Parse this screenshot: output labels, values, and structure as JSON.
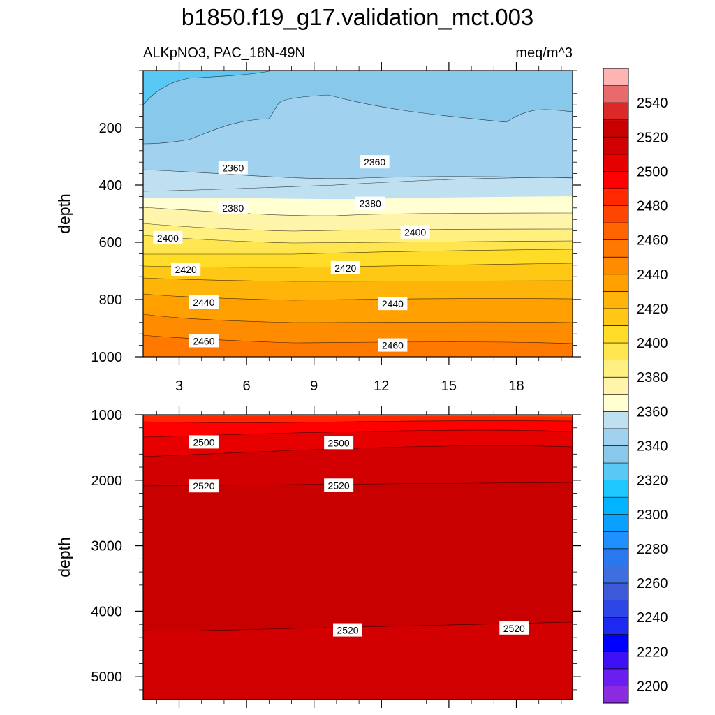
{
  "title": "b1850.f19_g17.validation_mct.003",
  "subtitle_left": "ALKpNO3, PAC_18N-49N",
  "subtitle_right": "meq/m^3",
  "chart_data": [
    {
      "type": "contour",
      "panel": "upper",
      "ylabel": "depth",
      "xlim": [
        1.4,
        20.5
      ],
      "ylim": [
        1000,
        0
      ],
      "x_ticks": [
        3,
        6,
        9,
        12,
        15,
        18
      ],
      "y_ticks": [
        200,
        400,
        600,
        800,
        1000
      ],
      "contour_labels": [
        {
          "value": 2360,
          "x": 5.4,
          "depth": 340
        },
        {
          "value": 2360,
          "x": 11.7,
          "depth": 320
        },
        {
          "value": 2380,
          "x": 5.4,
          "depth": 480
        },
        {
          "value": 2380,
          "x": 11.5,
          "depth": 465
        },
        {
          "value": 2400,
          "x": 2.5,
          "depth": 585
        },
        {
          "value": 2400,
          "x": 13.5,
          "depth": 565
        },
        {
          "value": 2420,
          "x": 3.3,
          "depth": 695
        },
        {
          "value": 2420,
          "x": 10.4,
          "depth": 690
        },
        {
          "value": 2440,
          "x": 4.1,
          "depth": 810
        },
        {
          "value": 2440,
          "x": 12.5,
          "depth": 815
        },
        {
          "value": 2460,
          "x": 4.1,
          "depth": 945
        },
        {
          "value": 2460,
          "x": 12.5,
          "depth": 960
        }
      ]
    },
    {
      "type": "contour",
      "panel": "lower",
      "ylabel": "depth",
      "xlim": [
        1.4,
        20.5
      ],
      "ylim": [
        5350,
        1000
      ],
      "y_ticks": [
        1000,
        2000,
        3000,
        4000,
        5000
      ],
      "contour_labels": [
        {
          "value": 2500,
          "x": 4.1,
          "depth": 1420
        },
        {
          "value": 2500,
          "x": 10.1,
          "depth": 1430
        },
        {
          "value": 2520,
          "x": 4.1,
          "depth": 2090
        },
        {
          "value": 2520,
          "x": 10.1,
          "depth": 2080
        },
        {
          "value": 2520,
          "x": 10.5,
          "depth": 4290
        },
        {
          "value": 2520,
          "x": 17.9,
          "depth": 4260
        }
      ]
    }
  ],
  "colorbar": {
    "levels": [
      2200,
      2210,
      2220,
      2230,
      2240,
      2250,
      2260,
      2270,
      2280,
      2290,
      2300,
      2310,
      2320,
      2330,
      2340,
      2350,
      2360,
      2370,
      2380,
      2390,
      2400,
      2410,
      2420,
      2430,
      2440,
      2450,
      2460,
      2470,
      2480,
      2490,
      2500,
      2510,
      2520,
      2530,
      2540,
      2550
    ],
    "labels": [
      "2200",
      "2220",
      "2240",
      "2260",
      "2280",
      "2300",
      "2320",
      "2340",
      "2360",
      "2380",
      "2400",
      "2420",
      "2440",
      "2460",
      "2480",
      "2500",
      "2520",
      "2540"
    ],
    "colors": [
      "#8a2be2",
      "#6a1ef0",
      "#3d10f5",
      "#0000ff",
      "#1e28f0",
      "#2d46e6",
      "#3c5ad8",
      "#3e6fe0",
      "#2a78f0",
      "#1e90ff",
      "#0aa0ff",
      "#00b4ff",
      "#1ec8ff",
      "#5ac8f5",
      "#87c8eb",
      "#a0d2f0",
      "#bee0f0",
      "#ffffd2",
      "#fff5aa",
      "#fff080",
      "#ffe650",
      "#ffdc28",
      "#ffc814",
      "#ffb40a",
      "#ffa000",
      "#ff8c00",
      "#ff7800",
      "#ff6400",
      "#ff4600",
      "#ff2800",
      "#ff0000",
      "#e60000",
      "#d20000",
      "#c80000",
      "#dc2828",
      "#e86a6a",
      "#ffb4b4"
    ]
  }
}
